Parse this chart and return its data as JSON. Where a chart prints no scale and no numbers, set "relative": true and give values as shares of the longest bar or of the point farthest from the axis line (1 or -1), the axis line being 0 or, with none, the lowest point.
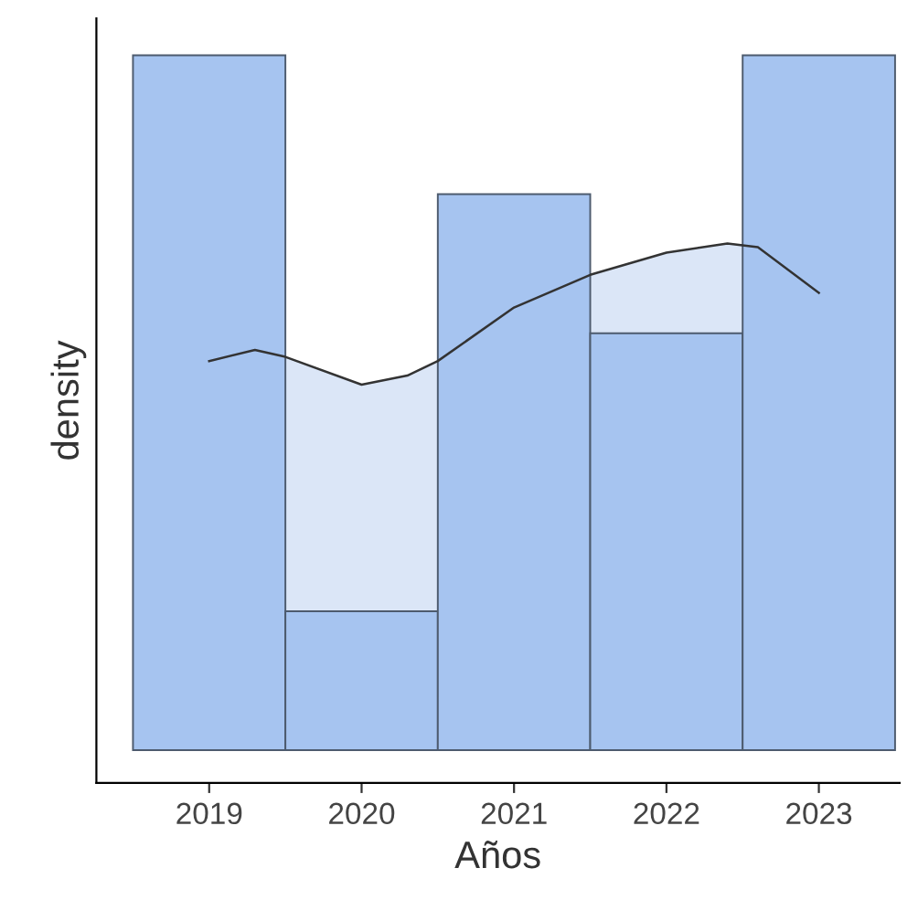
{
  "chart_data": {
    "type": "histogram",
    "relative": true,
    "xlabel": "Años",
    "ylabel": "density",
    "bins": [
      2018.5,
      2019.5,
      2020.5,
      2021.5,
      2022.5,
      2023.5
    ],
    "values": [
      1,
      0.2,
      0.8,
      0.6,
      1
    ],
    "color": "#a6c4f0",
    "xlim": [
      2018.26,
      2023.53
    ],
    "xticks": [
      2019,
      2020,
      2021,
      2022,
      2023
    ],
    "grid": false,
    "legend": false,
    "series": [
      {
        "type": "area",
        "color": "#dbe6f7",
        "x": [
          2019,
          2019.3,
          2019.5,
          2020,
          2020.3,
          2020.5,
          2021,
          2021.5,
          2022,
          2022.4,
          2022.6,
          2023
        ],
        "values": [
          0.56,
          0.576,
          0.566,
          0.526,
          0.539,
          0.56,
          0.637,
          0.684,
          0.716,
          0.729,
          0.724,
          0.658
        ]
      }
    ]
  }
}
